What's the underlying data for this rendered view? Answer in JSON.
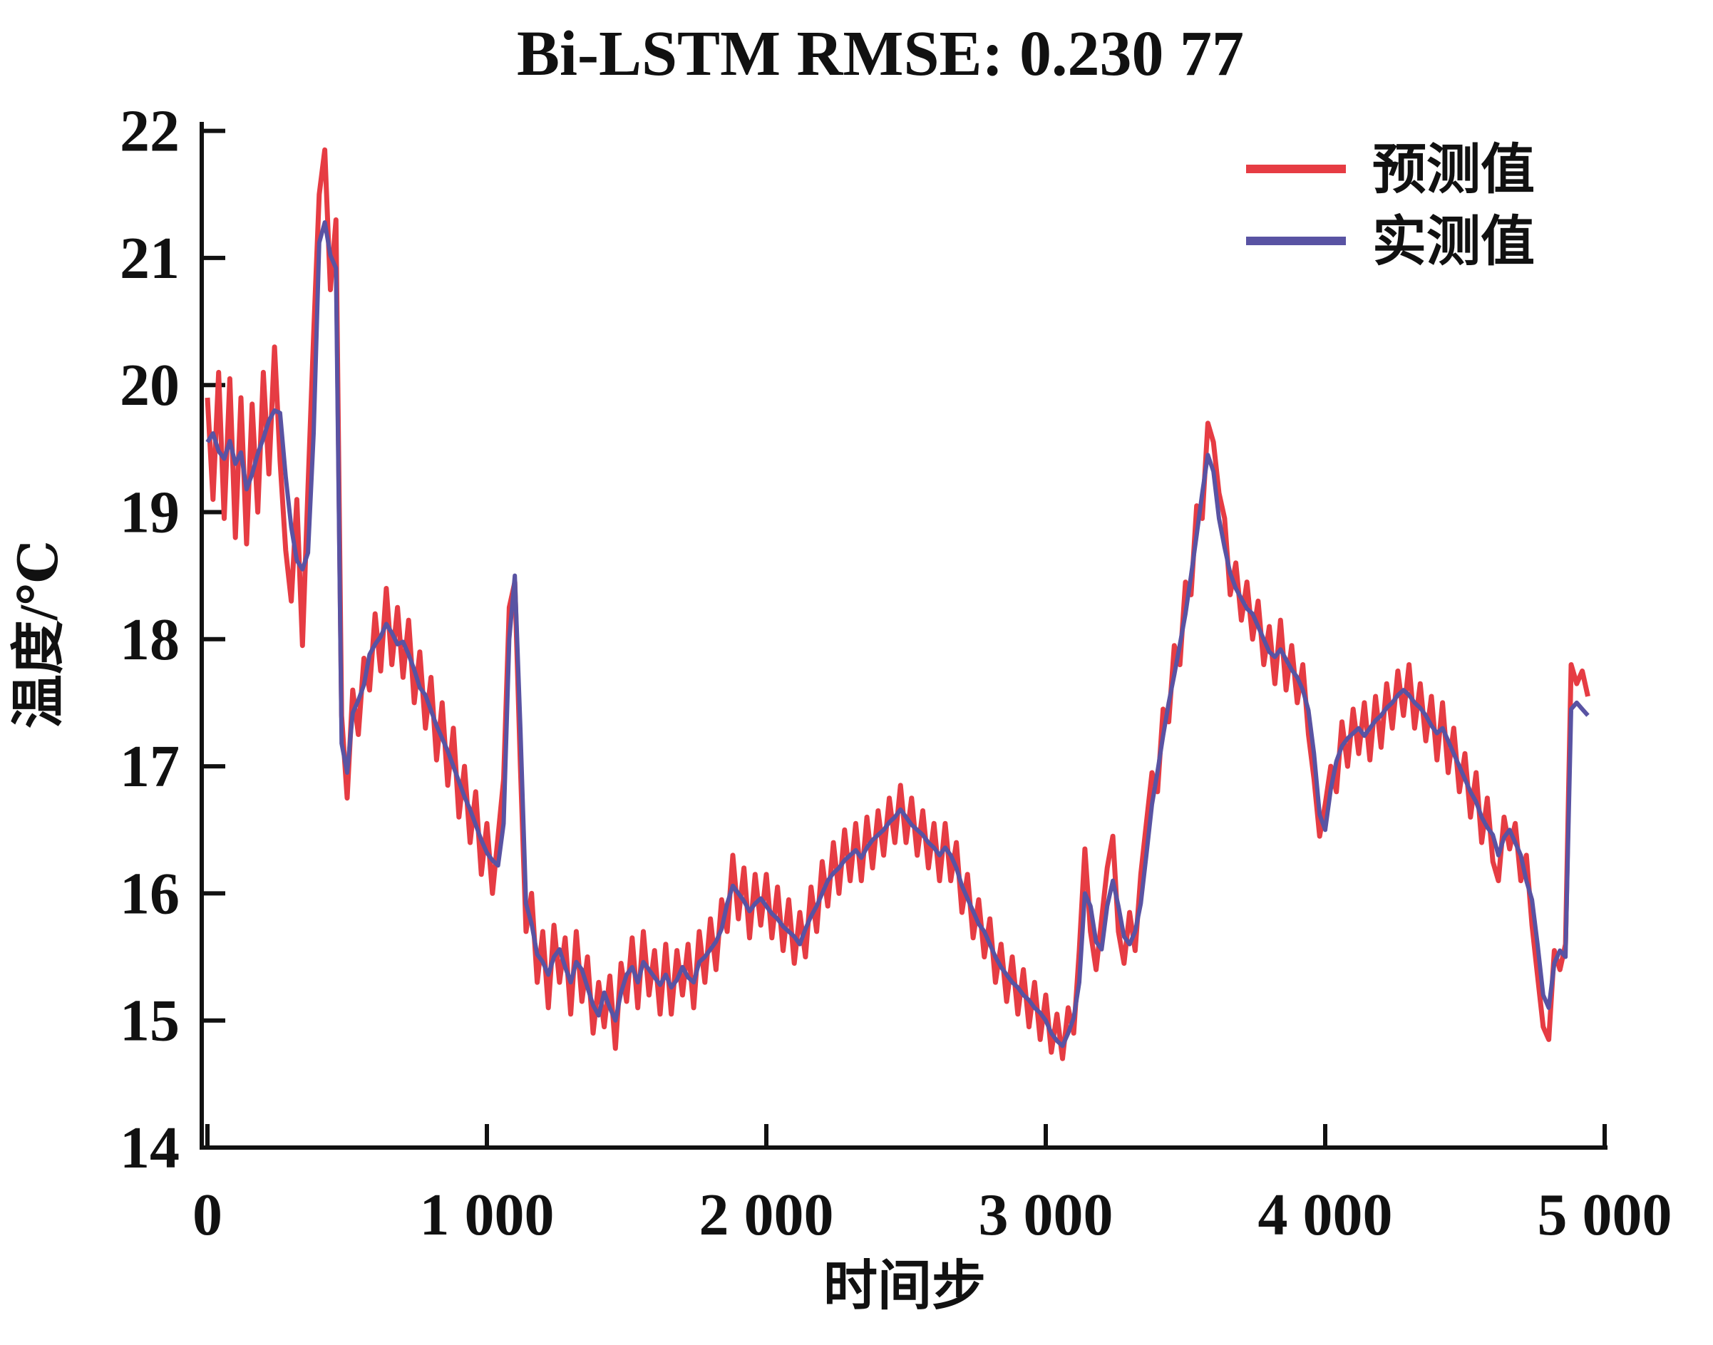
{
  "title": "Bi-LSTM RMSE: 0.230 77",
  "axes": {
    "x_label": "时间步",
    "y_label": "温度/℃",
    "x_ticks": [
      {
        "v": 0,
        "label": "0"
      },
      {
        "v": 1000,
        "label": "1 000"
      },
      {
        "v": 2000,
        "label": "2 000"
      },
      {
        "v": 3000,
        "label": "3 000"
      },
      {
        "v": 4000,
        "label": "4 000"
      },
      {
        "v": 5000,
        "label": "5 000"
      }
    ],
    "y_ticks": [
      {
        "v": 14,
        "label": "14"
      },
      {
        "v": 15,
        "label": "15"
      },
      {
        "v": 16,
        "label": "16"
      },
      {
        "v": 17,
        "label": "17"
      },
      {
        "v": 18,
        "label": "18"
      },
      {
        "v": 19,
        "label": "19"
      },
      {
        "v": 20,
        "label": "20"
      },
      {
        "v": 21,
        "label": "21"
      },
      {
        "v": 22,
        "label": "22"
      }
    ]
  },
  "legend": [
    {
      "label": "预测值",
      "color": "#e63c43"
    },
    {
      "label": "实测值",
      "color": "#5953a3"
    }
  ],
  "chart_data": {
    "type": "line",
    "title": "Bi-LSTM RMSE: 0.230 77",
    "xlabel": "时间步",
    "ylabel": "温度/℃",
    "xlim": [
      0,
      5000
    ],
    "ylim": [
      14,
      22
    ],
    "grid": false,
    "legend_position": "top-right",
    "x_start": 0,
    "x_step": 20,
    "n_points": 248,
    "series": [
      {
        "name": "预测值",
        "color": "#e63c43",
        "values": [
          19.9,
          19.1,
          20.1,
          18.95,
          20.05,
          18.8,
          19.9,
          18.75,
          19.85,
          19.0,
          20.1,
          19.3,
          20.3,
          19.4,
          18.7,
          18.3,
          19.1,
          17.95,
          19.2,
          20.4,
          21.5,
          21.85,
          20.75,
          21.3,
          17.4,
          16.75,
          17.6,
          17.25,
          17.85,
          17.6,
          18.2,
          17.75,
          18.4,
          17.8,
          18.25,
          17.7,
          18.15,
          17.5,
          17.9,
          17.3,
          17.7,
          17.05,
          17.5,
          16.85,
          17.3,
          16.6,
          17.0,
          16.4,
          16.8,
          16.15,
          16.55,
          16.0,
          16.45,
          16.9,
          18.25,
          18.45,
          17.0,
          15.7,
          16.0,
          15.3,
          15.7,
          15.1,
          15.75,
          15.3,
          15.65,
          15.05,
          15.7,
          15.15,
          15.5,
          14.9,
          15.3,
          14.95,
          15.35,
          14.78,
          15.45,
          15.15,
          15.65,
          15.1,
          15.7,
          15.2,
          15.55,
          15.05,
          15.6,
          15.05,
          15.55,
          15.2,
          15.6,
          15.1,
          15.7,
          15.3,
          15.8,
          15.4,
          15.95,
          15.7,
          16.3,
          15.8,
          16.2,
          15.65,
          16.15,
          15.75,
          16.15,
          15.65,
          16.05,
          15.55,
          15.95,
          15.45,
          15.85,
          15.5,
          16.05,
          15.7,
          16.25,
          15.9,
          16.4,
          16.0,
          16.5,
          16.1,
          16.55,
          16.1,
          16.6,
          16.2,
          16.65,
          16.3,
          16.75,
          16.4,
          16.85,
          16.4,
          16.75,
          16.3,
          16.65,
          16.2,
          16.55,
          16.1,
          16.55,
          16.1,
          16.4,
          15.85,
          16.15,
          15.65,
          15.95,
          15.5,
          15.8,
          15.3,
          15.6,
          15.15,
          15.5,
          15.05,
          15.4,
          14.95,
          15.3,
          14.85,
          15.2,
          14.75,
          15.05,
          14.7,
          15.1,
          14.9,
          15.55,
          16.35,
          15.7,
          15.4,
          15.8,
          16.2,
          16.45,
          15.7,
          15.45,
          15.85,
          15.55,
          16.15,
          16.55,
          16.95,
          16.8,
          17.45,
          17.35,
          17.95,
          17.8,
          18.45,
          18.35,
          19.05,
          18.95,
          19.7,
          19.55,
          19.15,
          18.95,
          18.35,
          18.6,
          18.15,
          18.45,
          18.0,
          18.3,
          17.8,
          18.1,
          17.65,
          18.15,
          17.6,
          17.95,
          17.5,
          17.8,
          17.25,
          16.9,
          16.45,
          16.7,
          17.0,
          16.8,
          17.35,
          17.0,
          17.45,
          17.1,
          17.5,
          17.05,
          17.55,
          17.15,
          17.65,
          17.3,
          17.75,
          17.4,
          17.8,
          17.3,
          17.65,
          17.2,
          17.55,
          17.05,
          17.5,
          16.95,
          17.3,
          16.8,
          17.1,
          16.6,
          16.95,
          16.4,
          16.75,
          16.25,
          16.1,
          16.6,
          16.35,
          16.55,
          16.1,
          16.3,
          15.75,
          15.35,
          14.95,
          14.85,
          15.55,
          15.4,
          15.6,
          17.8,
          17.65,
          17.75,
          17.55
        ]
      },
      {
        "name": "实测值",
        "color": "#5953a3",
        "values": [
          19.55,
          19.62,
          19.48,
          19.42,
          19.56,
          19.38,
          19.47,
          19.18,
          19.3,
          19.46,
          19.58,
          19.72,
          19.8,
          19.78,
          19.28,
          18.88,
          18.62,
          18.55,
          18.68,
          19.62,
          21.12,
          21.28,
          21.02,
          20.92,
          17.18,
          16.95,
          17.42,
          17.52,
          17.64,
          17.88,
          17.96,
          18.02,
          18.12,
          18.05,
          17.96,
          17.98,
          17.88,
          17.76,
          17.62,
          17.56,
          17.44,
          17.32,
          17.22,
          17.12,
          17.0,
          16.88,
          16.76,
          16.66,
          16.54,
          16.42,
          16.32,
          16.26,
          16.22,
          16.55,
          18.0,
          18.5,
          17.3,
          15.92,
          15.76,
          15.52,
          15.46,
          15.36,
          15.5,
          15.56,
          15.42,
          15.3,
          15.46,
          15.4,
          15.26,
          15.12,
          15.04,
          15.22,
          15.1,
          15.0,
          15.22,
          15.36,
          15.42,
          15.3,
          15.46,
          15.4,
          15.34,
          15.28,
          15.36,
          15.26,
          15.32,
          15.42,
          15.34,
          15.3,
          15.46,
          15.5,
          15.56,
          15.62,
          15.72,
          15.92,
          16.06,
          16.0,
          15.94,
          15.86,
          15.92,
          15.96,
          15.9,
          15.84,
          15.8,
          15.74,
          15.7,
          15.66,
          15.6,
          15.72,
          15.82,
          15.9,
          16.0,
          16.1,
          16.16,
          16.2,
          16.26,
          16.3,
          16.34,
          16.28,
          16.36,
          16.42,
          16.46,
          16.5,
          16.56,
          16.6,
          16.66,
          16.6,
          16.54,
          16.5,
          16.46,
          16.4,
          16.36,
          16.3,
          16.36,
          16.3,
          16.2,
          16.06,
          15.96,
          15.86,
          15.76,
          15.7,
          15.6,
          15.5,
          15.42,
          15.36,
          15.3,
          15.26,
          15.2,
          15.16,
          15.1,
          15.06,
          15.0,
          14.9,
          14.84,
          14.8,
          14.9,
          15.02,
          15.3,
          16.0,
          15.9,
          15.62,
          15.56,
          15.9,
          16.1,
          15.9,
          15.66,
          15.6,
          15.7,
          15.92,
          16.3,
          16.7,
          16.96,
          17.24,
          17.5,
          17.72,
          17.96,
          18.2,
          18.5,
          18.82,
          19.15,
          19.45,
          19.32,
          18.95,
          18.72,
          18.52,
          18.4,
          18.32,
          18.24,
          18.2,
          18.1,
          18.0,
          17.9,
          17.86,
          17.92,
          17.84,
          17.76,
          17.7,
          17.6,
          17.44,
          17.1,
          16.62,
          16.5,
          16.82,
          17.04,
          17.16,
          17.22,
          17.26,
          17.3,
          17.24,
          17.3,
          17.36,
          17.4,
          17.46,
          17.5,
          17.56,
          17.6,
          17.56,
          17.5,
          17.46,
          17.4,
          17.32,
          17.26,
          17.3,
          17.2,
          17.1,
          17.0,
          16.9,
          16.8,
          16.72,
          16.6,
          16.52,
          16.46,
          16.3,
          16.44,
          16.5,
          16.4,
          16.3,
          16.1,
          15.95,
          15.6,
          15.2,
          15.1,
          15.45,
          15.55,
          15.5,
          17.45,
          17.5,
          17.45,
          17.4
        ]
      }
    ]
  }
}
